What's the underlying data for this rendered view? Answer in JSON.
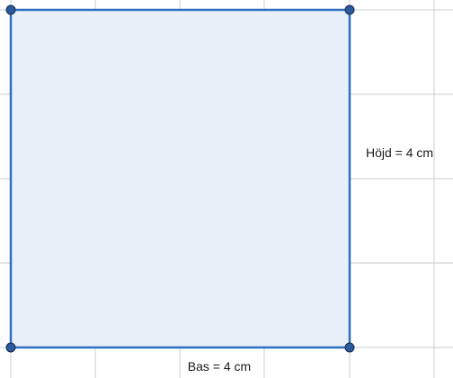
{
  "figure": {
    "base_label": "Bas = 4 cm",
    "height_label": "Höjd = 4 cm",
    "colors": {
      "background": "#ffffff",
      "grid": "#c8cdd3",
      "square_fill": "#e8eff9",
      "square_stroke": "#2e6fbf",
      "vertex_fill": "#2c5a9e",
      "vertex_stroke": "#14294d"
    }
  }
}
